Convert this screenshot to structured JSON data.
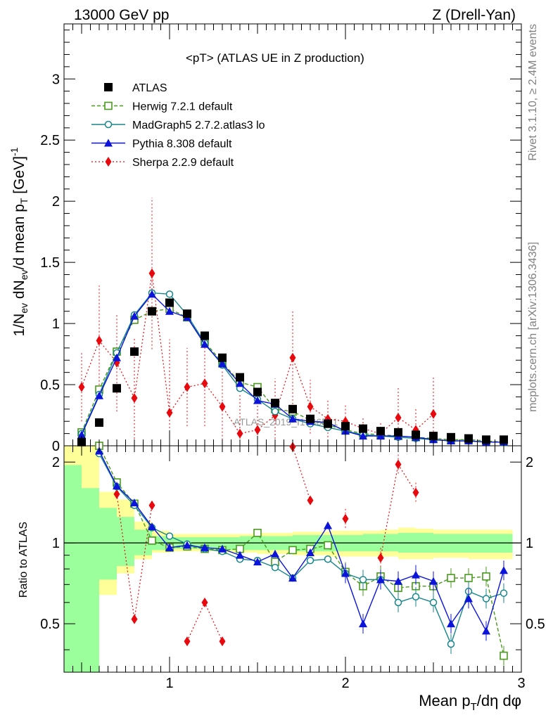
{
  "header": {
    "energy_label": "13000 GeV pp",
    "process_label": "Z (Drell-Yan)"
  },
  "side_labels": {
    "rivet": "Rivet 3.1.10, ≥ 2.4M events",
    "mcplots": "mcplots.cern.ch [arXiv:1306.3436]"
  },
  "chart_data": {
    "type": "scatter",
    "title": "<pT> (ATLAS UE in Z production)",
    "watermark": "ATLAS_2019_I1736531",
    "xlabel": "Mean p_T/dη dφ",
    "ylabel": "1/N_ev dN_ev/d mean p_T [GeV]^-1",
    "ratio_ylabel": "Ratio to ATLAS",
    "xlim": [
      0.4,
      3.0
    ],
    "ylim": [
      0,
      3.45
    ],
    "ratio_ylim": [
      0.33,
      2.3
    ],
    "x_ticks": [
      "1",
      "2",
      "3"
    ],
    "y_ticks": [
      "0",
      "0.5",
      "1",
      "1.5",
      "2",
      "2.5",
      "3"
    ],
    "ratio_ticks": [
      "0.5",
      "1",
      "2"
    ],
    "grid": false,
    "legend_position": "top-left",
    "x": [
      0.5,
      0.6,
      0.7,
      0.8,
      0.9,
      1.0,
      1.1,
      1.2,
      1.3,
      1.4,
      1.5,
      1.6,
      1.7,
      1.8,
      1.9,
      2.0,
      2.1,
      2.2,
      2.3,
      2.4,
      2.5,
      2.6,
      2.7,
      2.8,
      2.9
    ],
    "series": [
      {
        "name": "ATLAS",
        "color": "#000000",
        "marker": "square-filled",
        "line": "none",
        "values": [
          0.03,
          0.19,
          0.47,
          0.77,
          1.1,
          1.17,
          1.08,
          0.9,
          0.72,
          0.56,
          0.44,
          0.35,
          0.3,
          0.22,
          0.18,
          0.16,
          0.14,
          0.12,
          0.11,
          0.09,
          0.08,
          0.07,
          0.06,
          0.05,
          0.05
        ],
        "ratio": [
          1,
          1,
          1,
          1,
          1,
          1,
          1,
          1,
          1,
          1,
          1,
          1,
          1,
          1,
          1,
          1,
          1,
          1,
          1,
          1,
          1,
          1,
          1,
          1,
          1
        ]
      },
      {
        "name": "Herwig 7.2.1 default",
        "color": "#4a9a1e",
        "marker": "square-open",
        "line": "dashed",
        "values": [
          0.11,
          0.46,
          0.77,
          1.03,
          1.1,
          1.12,
          1.05,
          0.85,
          0.68,
          0.52,
          0.48,
          0.3,
          0.28,
          0.21,
          0.17,
          0.13,
          0.1,
          0.09,
          0.08,
          0.07,
          0.06,
          0.05,
          0.05,
          0.04,
          0.03
        ],
        "ratio": [
          null,
          2.3,
          1.68,
          1.4,
          1.02,
          0.96,
          0.97,
          0.95,
          0.94,
          0.95,
          1.09,
          0.85,
          0.94,
          0.95,
          0.98,
          0.78,
          0.69,
          0.75,
          0.68,
          0.69,
          0.69,
          0.74,
          0.74,
          0.75,
          0.38
        ]
      },
      {
        "name": "MadGraph5 2.7.2.atlas3 lo",
        "color": "#16868c",
        "marker": "circle-open",
        "line": "solid",
        "values": [
          0.1,
          0.42,
          0.76,
          1.07,
          1.25,
          1.24,
          1.07,
          0.84,
          0.66,
          0.47,
          0.38,
          0.28,
          0.22,
          0.18,
          0.15,
          0.12,
          0.09,
          0.08,
          0.07,
          0.06,
          0.05,
          0.04,
          0.04,
          0.03,
          0.03
        ],
        "ratio": [
          null,
          2.15,
          1.62,
          1.38,
          1.14,
          1.06,
          0.99,
          0.95,
          0.93,
          0.87,
          0.86,
          0.81,
          0.74,
          0.86,
          0.87,
          0.77,
          0.73,
          0.73,
          0.6,
          0.63,
          0.6,
          0.42,
          0.66,
          0.62,
          0.65
        ]
      },
      {
        "name": "Pythia 8.308 default",
        "color": "#0b14d8",
        "marker": "triangle-filled",
        "line": "solid",
        "values": [
          0.09,
          0.41,
          0.72,
          1.06,
          1.24,
          1.1,
          1.05,
          0.83,
          0.67,
          0.51,
          0.37,
          0.34,
          0.22,
          0.2,
          0.19,
          0.12,
          0.08,
          0.08,
          0.08,
          0.07,
          0.05,
          0.04,
          0.04,
          0.03,
          0.03
        ],
        "ratio": [
          null,
          2.2,
          1.63,
          1.41,
          1.15,
          0.96,
          0.98,
          0.96,
          0.95,
          0.9,
          0.85,
          0.91,
          0.74,
          0.92,
          1.16,
          0.77,
          0.5,
          0.73,
          0.72,
          0.76,
          0.72,
          0.5,
          0.62,
          0.47,
          0.79
        ]
      },
      {
        "name": "Sherpa 2.2.9 default",
        "color": "#e8090f",
        "marker": "diamond-filled",
        "line": "dotted",
        "values": [
          0.48,
          0.86,
          0.68,
          0.39,
          1.41,
          0.27,
          0.48,
          0.51,
          0.32,
          0.1,
          0.13,
          0.25,
          0.72,
          0.32,
          0.22,
          0.2,
          0.14,
          0.1,
          0.23,
          0.13,
          0.26,
          null,
          null,
          null,
          null
        ],
        "ratio": [
          null,
          null,
          1.52,
          0.52,
          1.38,
          null,
          0.43,
          0.6,
          0.43,
          null,
          null,
          null,
          2.28,
          1.44,
          null,
          1.23,
          null,
          0.88,
          1.96,
          1.54,
          null,
          null,
          null,
          null,
          null
        ]
      }
    ]
  }
}
